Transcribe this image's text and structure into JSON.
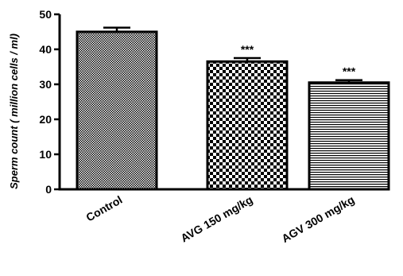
{
  "chart_data": {
    "type": "bar",
    "categories": [
      "Control",
      "AVG 150 mg/kg",
      "AGV 300 mg/kg"
    ],
    "values": [
      45,
      36.5,
      30.5
    ],
    "error": [
      1.2,
      1.0,
      0.7
    ],
    "annotations": [
      "",
      "***",
      "***"
    ],
    "patterns": [
      "fine-checker",
      "coarse-checker",
      "horizontal-lines"
    ],
    "xlabel": "",
    "ylabel": "Sperm count ( million cells / ml)",
    "ylim": [
      0,
      50
    ],
    "yticks": [
      "0",
      "10",
      "20",
      "30",
      "40",
      "50"
    ],
    "grid": false,
    "colors": {
      "bar_fill": "#ffffff",
      "pattern": "#000000",
      "axis": "#000000"
    }
  }
}
